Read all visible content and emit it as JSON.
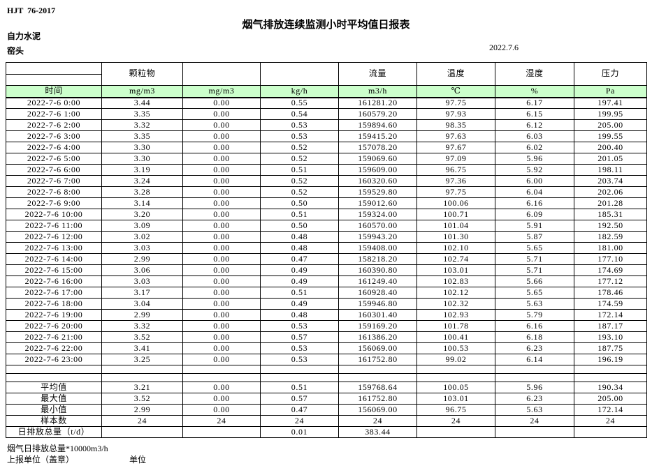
{
  "page": {
    "standard": "HJT  76-2017",
    "title": "烟气排放连续监测小时平均值日报表",
    "company": "自力水泥",
    "station": "窑头",
    "date": "2022.7.6"
  },
  "table": {
    "group_headers": [
      "",
      "颗粒物",
      "",
      "",
      "流量",
      "温度",
      "湿度",
      "压力"
    ],
    "unit_row": [
      "时间",
      "mg/m3",
      "mg/m3",
      "kg/h",
      "m3/h",
      "℃",
      "%",
      "Pa"
    ],
    "rows": [
      [
        "2022-7-6 0:00",
        "3.44",
        "0.00",
        "0.55",
        "161281.20",
        "97.75",
        "6.17",
        "197.41"
      ],
      [
        "2022-7-6 1:00",
        "3.35",
        "0.00",
        "0.54",
        "160579.20",
        "97.93",
        "6.15",
        "199.95"
      ],
      [
        "2022-7-6 2:00",
        "3.32",
        "0.00",
        "0.53",
        "159894.60",
        "98.35",
        "6.12",
        "205.00"
      ],
      [
        "2022-7-6 3:00",
        "3.35",
        "0.00",
        "0.53",
        "159415.20",
        "97.63",
        "6.03",
        "199.55"
      ],
      [
        "2022-7-6 4:00",
        "3.30",
        "0.00",
        "0.52",
        "157078.20",
        "97.67",
        "6.02",
        "200.40"
      ],
      [
        "2022-7-6 5:00",
        "3.30",
        "0.00",
        "0.52",
        "159069.60",
        "97.09",
        "5.96",
        "201.05"
      ],
      [
        "2022-7-6 6:00",
        "3.19",
        "0.00",
        "0.51",
        "159609.00",
        "96.75",
        "5.92",
        "198.11"
      ],
      [
        "2022-7-6 7:00",
        "3.24",
        "0.00",
        "0.52",
        "160320.60",
        "97.36",
        "6.00",
        "203.74"
      ],
      [
        "2022-7-6 8:00",
        "3.28",
        "0.00",
        "0.52",
        "159529.80",
        "97.75",
        "6.04",
        "202.06"
      ],
      [
        "2022-7-6 9:00",
        "3.14",
        "0.00",
        "0.50",
        "159012.60",
        "100.06",
        "6.16",
        "201.28"
      ],
      [
        "2022-7-6 10:00",
        "3.20",
        "0.00",
        "0.51",
        "159324.00",
        "100.71",
        "6.09",
        "185.31"
      ],
      [
        "2022-7-6 11:00",
        "3.09",
        "0.00",
        "0.50",
        "160570.00",
        "101.04",
        "5.91",
        "192.50"
      ],
      [
        "2022-7-6 12:00",
        "3.02",
        "0.00",
        "0.48",
        "159943.20",
        "101.30",
        "5.87",
        "182.59"
      ],
      [
        "2022-7-6 13:00",
        "3.03",
        "0.00",
        "0.48",
        "159408.00",
        "102.10",
        "5.65",
        "181.00"
      ],
      [
        "2022-7-6 14:00",
        "2.99",
        "0.00",
        "0.47",
        "158218.20",
        "102.74",
        "5.71",
        "177.10"
      ],
      [
        "2022-7-6 15:00",
        "3.06",
        "0.00",
        "0.49",
        "160390.80",
        "103.01",
        "5.71",
        "174.69"
      ],
      [
        "2022-7-6 16:00",
        "3.03",
        "0.00",
        "0.49",
        "161249.40",
        "102.83",
        "5.66",
        "177.12"
      ],
      [
        "2022-7-6 17:00",
        "3.17",
        "0.00",
        "0.51",
        "160928.40",
        "102.12",
        "5.65",
        "178.46"
      ],
      [
        "2022-7-6 18:00",
        "3.04",
        "0.00",
        "0.49",
        "159946.80",
        "102.32",
        "5.63",
        "174.59"
      ],
      [
        "2022-7-6 19:00",
        "2.99",
        "0.00",
        "0.48",
        "160301.40",
        "102.93",
        "5.79",
        "172.14"
      ],
      [
        "2022-7-6 20:00",
        "3.32",
        "0.00",
        "0.53",
        "159169.20",
        "101.78",
        "6.16",
        "187.17"
      ],
      [
        "2022-7-6 21:00",
        "3.52",
        "0.00",
        "0.57",
        "161386.20",
        "100.41",
        "6.18",
        "193.10"
      ],
      [
        "2022-7-6 22:00",
        "3.41",
        "0.00",
        "0.53",
        "156069.00",
        "100.53",
        "6.23",
        "187.75"
      ],
      [
        "2022-7-6 23:00",
        "3.25",
        "0.00",
        "0.53",
        "161752.80",
        "99.02",
        "6.14",
        "196.19"
      ]
    ],
    "summary": [
      [
        "平均值",
        "3.21",
        "0.00",
        "0.51",
        "159768.64",
        "100.05",
        "5.96",
        "190.34"
      ],
      [
        "最大值",
        "3.52",
        "0.00",
        "0.57",
        "161752.80",
        "103.01",
        "6.23",
        "205.00"
      ],
      [
        "最小值",
        "2.99",
        "0.00",
        "0.47",
        "156069.00",
        "96.75",
        "5.63",
        "172.14"
      ],
      [
        "样本数",
        "24",
        "24",
        "24",
        "24",
        "24",
        "24",
        "24"
      ],
      [
        "日排放总量（t/d）",
        "",
        "",
        "0.01",
        "383.44",
        "",
        "",
        ""
      ]
    ]
  },
  "footer": {
    "note": "烟气日排放总量*10000m3/h",
    "report_unit": "上报单位（盖章）",
    "unit_label": "单位"
  },
  "colors": {
    "unit_row_bg": "#ccffcc",
    "border": "#000000",
    "text": "#000000"
  }
}
